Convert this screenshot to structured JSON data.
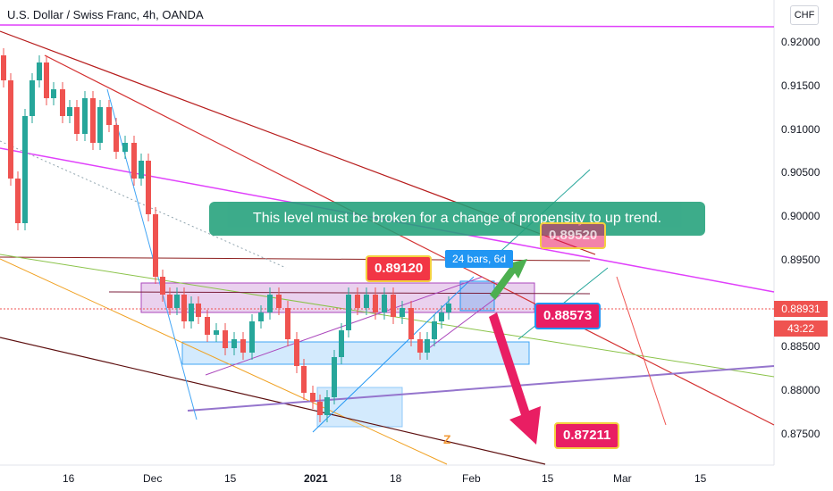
{
  "header": {
    "title": "U.S. Dollar / Swiss Franc, 4h, OANDA",
    "currency": "CHF"
  },
  "colors": {
    "up": "#26a69a",
    "down": "#ef5350",
    "accent_red": "#e91e63",
    "note_bg": "#22a07a",
    "magenta": "#e040fb"
  },
  "chart_data": {
    "type": "candlestick",
    "symbol": "USDCHF",
    "timeframe": "4h",
    "y_ticks": [
      "0.92000",
      "0.91500",
      "0.91000",
      "0.90500",
      "0.90000",
      "0.89500",
      "0.89000",
      "0.88500",
      "0.88000",
      "0.87500"
    ],
    "x_ticks": [
      "16",
      "Dec",
      "15",
      "2021",
      "18",
      "Feb",
      "15",
      "Mar",
      "15"
    ],
    "current_price": "0.88931",
    "countdown": "43:22",
    "levels": {
      "upper_callout": "0.89520",
      "entry_callout": "0.89120",
      "current_callout": "0.88573",
      "target_callout": "0.87211"
    },
    "bars_info": "24 bars, 6d",
    "annotation": "This level must be broken for a change of propensity to up trend."
  },
  "logo_text": "Z",
  "icons": {
    "logo": "tradingview-logo-icon"
  }
}
